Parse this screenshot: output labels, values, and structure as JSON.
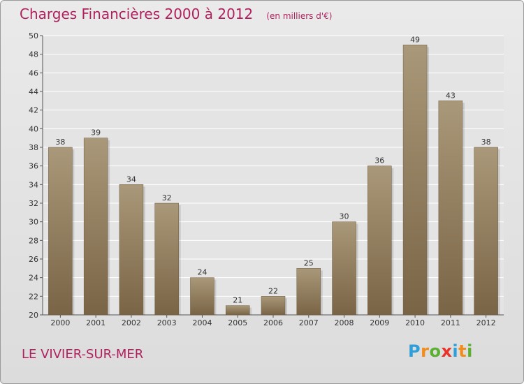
{
  "title": "Charges Financières 2000 à 2012",
  "unit": "(en milliers d'€)",
  "commune": "LE VIVIER-SUR-MER",
  "logo": {
    "text": "Proxiti",
    "letters": [
      {
        "ch": "P",
        "color": "#2e9fd8"
      },
      {
        "ch": "r",
        "color": "#f28c1b"
      },
      {
        "ch": "o",
        "color": "#5bb031"
      },
      {
        "ch": "x",
        "color": "#e8332a"
      },
      {
        "ch": "i",
        "color": "#2e9fd8"
      },
      {
        "ch": "t",
        "color": "#f28c1b"
      },
      {
        "ch": "i",
        "color": "#5bb031"
      }
    ]
  },
  "colors": {
    "title": "#b0205e",
    "bar_top": "#a99879",
    "bar_bottom": "#7a6446",
    "grid": "#ffffff"
  },
  "chart_data": {
    "type": "bar",
    "title": "Charges Financières 2000 à 2012",
    "subtitle": "(en milliers d'€)",
    "xlabel": "",
    "ylabel": "",
    "categories": [
      "2000",
      "2001",
      "2002",
      "2003",
      "2004",
      "2005",
      "2006",
      "2007",
      "2008",
      "2009",
      "2010",
      "2011",
      "2012"
    ],
    "values": [
      38,
      39,
      34,
      32,
      24,
      21,
      22,
      25,
      30,
      36,
      49,
      43,
      38
    ],
    "ylim": [
      20,
      50
    ],
    "yticks": [
      20,
      22,
      24,
      26,
      28,
      30,
      32,
      34,
      36,
      38,
      40,
      42,
      44,
      46,
      48,
      50
    ],
    "grid": true,
    "data_labels": true
  }
}
